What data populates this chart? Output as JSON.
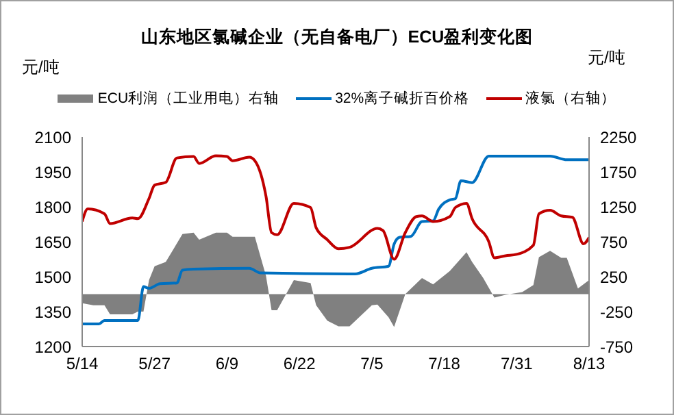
{
  "chart_data": {
    "type": "line",
    "title": "山东地区氯碱企业（无自备电厂）ECU盈利变化图",
    "ylabel": "元/吨",
    "y2label": "元/吨",
    "xlim": [
      "--05-14",
      "--08-13"
    ],
    "xticks": [
      {
        "value": "--05-14",
        "label": "5/14"
      },
      {
        "value": "--05-27",
        "label": "5/27"
      },
      {
        "value": "--06-09",
        "label": "6/9"
      },
      {
        "value": "--06-22",
        "label": "6/22"
      },
      {
        "value": "--07-05",
        "label": "7/5"
      },
      {
        "value": "--07-18",
        "label": "7/18"
      },
      {
        "value": "--07-31",
        "label": "7/31"
      },
      {
        "value": "--08-13",
        "label": "8/13"
      }
    ],
    "ylim": [
      1200,
      2100
    ],
    "yticks": [
      1200,
      1350,
      1500,
      1650,
      1800,
      1950,
      2100
    ],
    "y2lim": [
      -750,
      2250
    ],
    "y2ticks": [
      -750,
      -250,
      250,
      750,
      1250,
      1750,
      2250
    ],
    "legend": "top",
    "series": [
      {
        "name": "ECU利润（工业用电）右轴",
        "type": "area",
        "axis": "y2",
        "color": "#808080",
        "x": [
          "--05-14",
          "--05-16",
          "--05-18",
          "--05-19",
          "--05-23",
          "--05-24",
          "--05-25",
          "--05-26",
          "--05-27",
          "--05-29",
          "--06-01",
          "--06-03",
          "--06-04",
          "--06-07",
          "--06-09",
          "--06-10",
          "--06-14",
          "--06-16",
          "--06-17",
          "--06-18",
          "--06-21",
          "--06-24",
          "--06-25",
          "--06-27",
          "--06-29",
          "--07-01",
          "--07-05",
          "--07-06",
          "--07-08",
          "--07-09",
          "--07-11",
          "--07-14",
          "--07-16",
          "--07-19",
          "--07-22",
          "--07-23",
          "--07-25",
          "--07-27",
          "--07-29",
          "--08-01",
          "--08-03",
          "--08-04",
          "--08-06",
          "--08-08",
          "--08-09",
          "--08-11",
          "--08-13"
        ],
        "values": [
          -130,
          -160,
          -160,
          -290,
          -290,
          -250,
          -250,
          200,
          400,
          460,
          860,
          880,
          780,
          880,
          880,
          820,
          820,
          260,
          -230,
          -230,
          200,
          160,
          -160,
          -380,
          -460,
          -460,
          -160,
          -150,
          -330,
          -470,
          0,
          230,
          140,
          330,
          600,
          460,
          230,
          -50,
          -10,
          30,
          130,
          530,
          620,
          520,
          520,
          80,
          200
        ]
      },
      {
        "name": "32%离子碱折百价格",
        "color": "#0070c0",
        "x": [
          "--05-14",
          "--05-17",
          "--05-18",
          "--05-24",
          "--05-25",
          "--05-26",
          "--05-28",
          "--05-31",
          "--06-01",
          "--06-03",
          "--06-13",
          "--06-15",
          "--07-02",
          "--07-05",
          "--07-08",
          "--07-09",
          "--07-10",
          "--07-12",
          "--07-14",
          "--07-16",
          "--07-17",
          "--07-19",
          "--07-20",
          "--07-21",
          "--07-23",
          "--07-26",
          "--08-06",
          "--08-09",
          "--08-13"
        ],
        "values": [
          1297,
          1297,
          1312,
          1312,
          1457,
          1450,
          1470,
          1473,
          1528,
          1532,
          1536,
          1516,
          1512,
          1536,
          1545,
          1640,
          1669,
          1673,
          1737,
          1740,
          1790,
          1830,
          1835,
          1912,
          1904,
          2018,
          2018,
          2002,
          2002
        ]
      },
      {
        "name": "液氯（右轴）",
        "axis": "y2",
        "color": "#c00000",
        "x": [
          "--05-14",
          "--05-15",
          "--05-18",
          "--05-19",
          "--05-23",
          "--05-24",
          "--05-26",
          "--05-27",
          "--05-29",
          "--05-31",
          "--06-03",
          "--06-04",
          "--06-07",
          "--06-09",
          "--06-10",
          "--06-13",
          "--06-14",
          "--06-16",
          "--06-17",
          "--06-18",
          "--06-21",
          "--06-24",
          "--06-25",
          "--06-27",
          "--06-29",
          "--07-01",
          "--07-06",
          "--07-07",
          "--07-09",
          "--07-11",
          "--07-13",
          "--07-14",
          "--07-16",
          "--07-19",
          "--07-20",
          "--07-22",
          "--07-23",
          "--07-26",
          "--07-27",
          "--07-29",
          "--07-31",
          "--08-03",
          "--08-04",
          "--08-06",
          "--08-08",
          "--08-10",
          "--08-12",
          "--08-13"
        ],
        "values": [
          1040,
          1220,
          1150,
          1010,
          1090,
          1080,
          1370,
          1560,
          1600,
          1950,
          1970,
          1870,
          1980,
          1970,
          1910,
          1960,
          1910,
          1400,
          880,
          850,
          1300,
          1240,
          950,
          780,
          650,
          670,
          940,
          910,
          500,
          880,
          1110,
          1120,
          1040,
          1110,
          1240,
          1300,
          1080,
          750,
          520,
          550,
          570,
          700,
          1150,
          1200,
          1120,
          1100,
          720,
          810
        ]
      }
    ]
  }
}
